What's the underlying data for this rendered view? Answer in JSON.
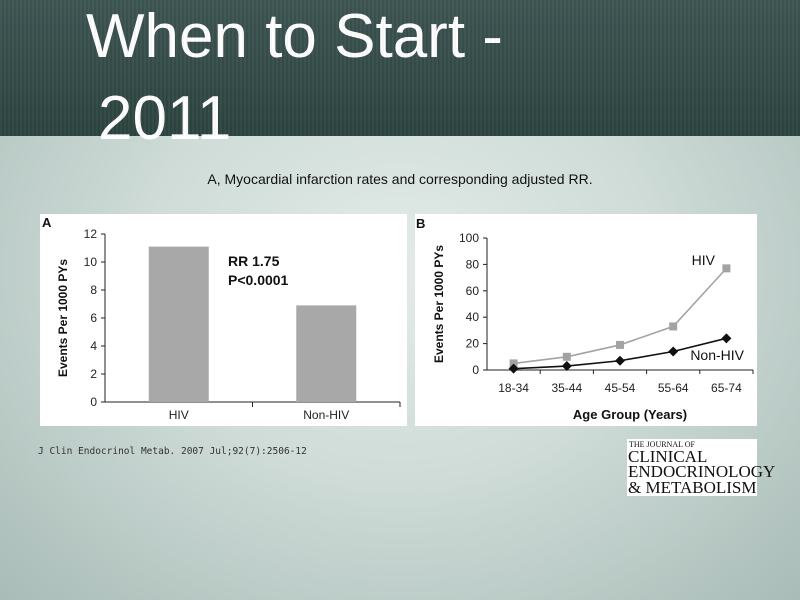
{
  "slide": {
    "title_line1": "When to Start -",
    "title_line2": "2011",
    "caption": "A, Myocardial infarction rates and corresponding adjusted RR.",
    "citation": "J Clin Endocrinol Metab. 2007 Jul;92(7):2506-12"
  },
  "journal_logo": {
    "small": "THE JOURNAL OF",
    "line1": "CLINICAL",
    "line2": "ENDOCRINOLOGY",
    "line3": "& METABOLISM"
  },
  "colors": {
    "title_band": "#34504d",
    "bar": "#a8a8a8",
    "hiv_series": "#a3a3a3",
    "nonhiv_series": "#111111"
  },
  "chart_data": [
    {
      "type": "bar",
      "panel_label": "A",
      "ylabel": "Events Per 1000 PYs",
      "categories": [
        "HIV",
        "Non-HIV"
      ],
      "values": [
        11.1,
        6.9
      ],
      "ylim": [
        0,
        12
      ],
      "yticks": [
        "0",
        "2",
        "4",
        "6",
        "8",
        "10",
        "12"
      ],
      "annotations": [
        "RR 1.75",
        "P<0.0001"
      ]
    },
    {
      "type": "line",
      "panel_label": "B",
      "xlabel": "Age Group (Years)",
      "ylabel": "Events Per 1000 PYs",
      "categories": [
        "18-34",
        "35-44",
        "45-54",
        "55-64",
        "65-74"
      ],
      "ylim": [
        0,
        100
      ],
      "yticks": [
        "0",
        "20",
        "40",
        "60",
        "80",
        "100"
      ],
      "series": [
        {
          "name": "HIV",
          "marker": "square",
          "values": [
            5,
            10,
            19,
            33,
            77
          ]
        },
        {
          "name": "Non-HIV",
          "marker": "diamond",
          "values": [
            1,
            3,
            7,
            14,
            24
          ]
        }
      ]
    }
  ]
}
